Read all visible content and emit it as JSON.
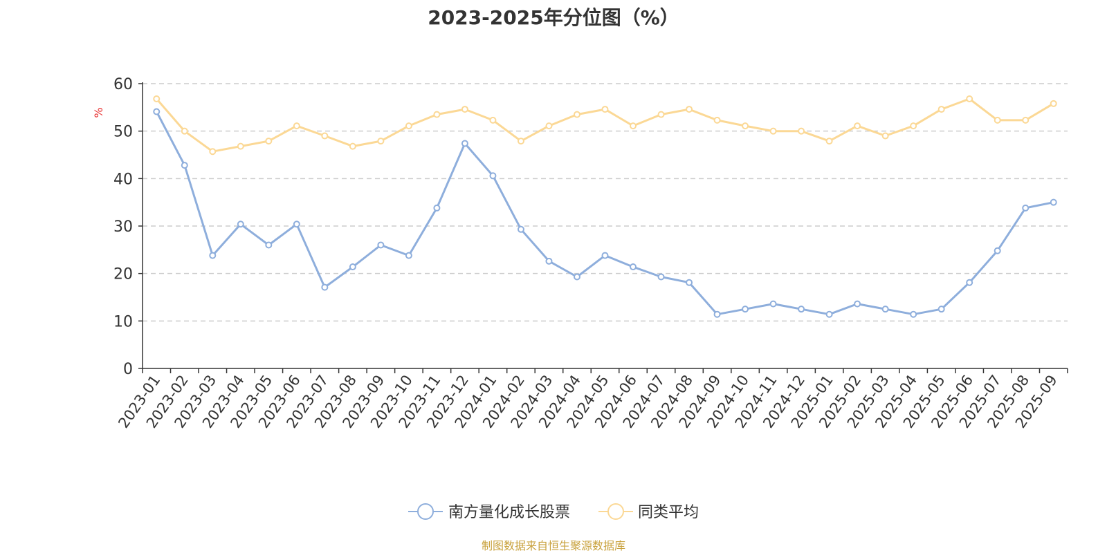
{
  "chart_data": {
    "type": "line",
    "title": "2023-2025年分位图（%）",
    "ylabel": "%",
    "xlabel": "",
    "ylim": [
      0,
      60
    ],
    "yticks": [
      0,
      10,
      20,
      30,
      40,
      50,
      60
    ],
    "grid": true,
    "legend_position": "bottom",
    "categories": [
      "2023-01",
      "2023-02",
      "2023-03",
      "2023-04",
      "2023-05",
      "2023-06",
      "2023-07",
      "2023-08",
      "2023-09",
      "2023-10",
      "2023-11",
      "2023-12",
      "2024-01",
      "2024-02",
      "2024-03",
      "2024-04",
      "2024-05",
      "2024-06",
      "2024-07",
      "2024-08",
      "2024-09",
      "2024-10",
      "2024-11",
      "2024-12",
      "2025-01",
      "2025-02",
      "2025-03",
      "2025-04",
      "2025-05",
      "2025-06",
      "2025-07",
      "2025-08",
      "2025-09"
    ],
    "series": [
      {
        "name": "南方量化成长股票",
        "color": "#8eaedc",
        "values": [
          54.1,
          42.8,
          23.8,
          30.4,
          26.0,
          30.4,
          17.1,
          21.4,
          26.0,
          23.8,
          33.8,
          47.4,
          40.6,
          29.3,
          22.6,
          19.3,
          23.8,
          21.4,
          19.3,
          18.1,
          11.4,
          12.5,
          13.6,
          12.5,
          11.4,
          13.6,
          12.5,
          11.4,
          12.5,
          18.1,
          24.8,
          33.8,
          35.0
        ]
      },
      {
        "name": "同类平均",
        "color": "#fbd895",
        "values": [
          56.8,
          50.0,
          45.7,
          46.8,
          47.9,
          51.1,
          49.0,
          46.8,
          47.9,
          51.1,
          53.5,
          54.6,
          52.3,
          47.9,
          51.1,
          53.5,
          54.6,
          51.1,
          53.5,
          54.6,
          52.3,
          51.1,
          50.0,
          50.0,
          47.9,
          51.1,
          49.0,
          51.1,
          54.6,
          56.8,
          52.3,
          52.3,
          55.8
        ]
      }
    ]
  },
  "colors": {
    "axis": "#333333",
    "grid": "#cccccc",
    "ylabel": "#e83030"
  },
  "source_note": "制图数据来自恒生聚源数据库"
}
